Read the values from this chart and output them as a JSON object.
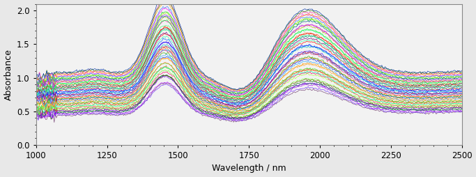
{
  "wavelength_start": 1000,
  "wavelength_end": 2500,
  "n_points": 400,
  "n_samples": 48,
  "xlabel": "Wavelength / nm",
  "ylabel": "Absorbance",
  "xlim": [
    1000,
    2500
  ],
  "ylim": [
    0,
    2.1
  ],
  "yticks": [
    0,
    0.5,
    1.0,
    1.5,
    2.0
  ],
  "xticks": [
    1000,
    1250,
    1500,
    1750,
    2000,
    2250,
    2500
  ],
  "linewidth": 0.5,
  "alpha": 0.9,
  "figsize": [
    6.83,
    2.54
  ],
  "dpi": 100,
  "bg_color": "#f0f0f0",
  "seed": 42
}
